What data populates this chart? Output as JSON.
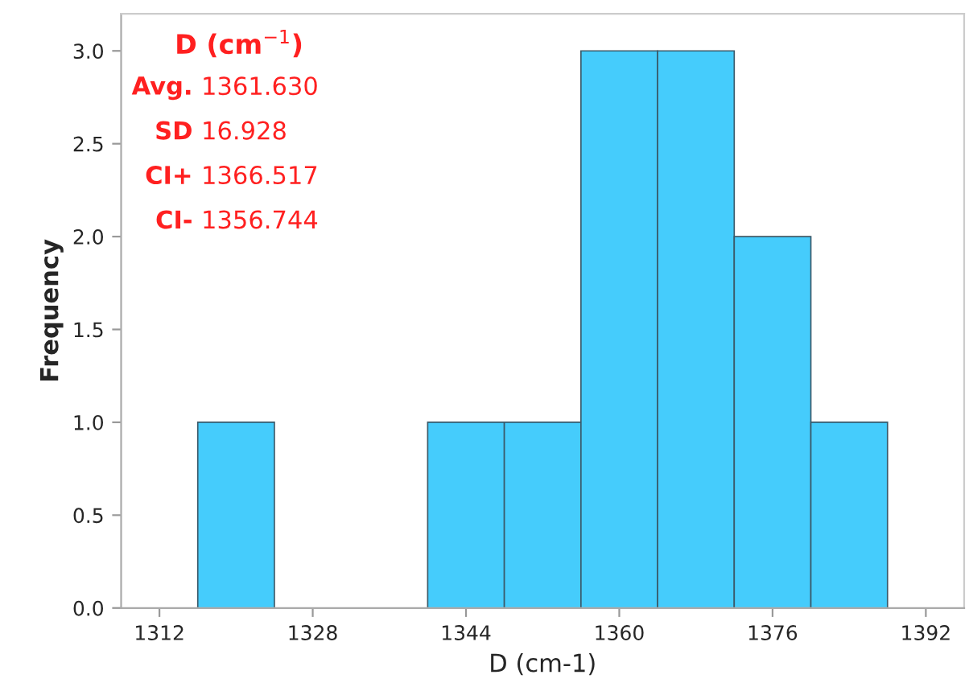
{
  "chart_data": {
    "type": "histogram",
    "xlabel": "D (cm-1)",
    "ylabel": "Frequency",
    "bins": [
      1316,
      1324,
      1332,
      1340,
      1348,
      1356,
      1364,
      1372,
      1380,
      1388
    ],
    "values": [
      1,
      0,
      0,
      1,
      1,
      3,
      3,
      2,
      1
    ],
    "color": "#45ccfc",
    "xlim": [
      1308,
      1396
    ],
    "xticks": [
      1312,
      1328,
      1344,
      1360,
      1376,
      1392
    ],
    "ylim": [
      0,
      3.2
    ],
    "yticks": [
      {
        "value": 0,
        "label": "0.0"
      },
      {
        "value": 0.5,
        "label": "0.5"
      },
      {
        "value": 1,
        "label": "1.0"
      },
      {
        "value": 1.5,
        "label": "1.5"
      },
      {
        "value": 2,
        "label": "2.0"
      },
      {
        "value": 2.5,
        "label": "2.5"
      },
      {
        "value": 3,
        "label": "3.0"
      }
    ],
    "grid": false,
    "annotations": [
      "D (cm$^{−1}$)",
      "Avg. 1361.630",
      "SD 16.928",
      "CI+ 1366.517",
      "CI- 1356.744"
    ]
  }
}
